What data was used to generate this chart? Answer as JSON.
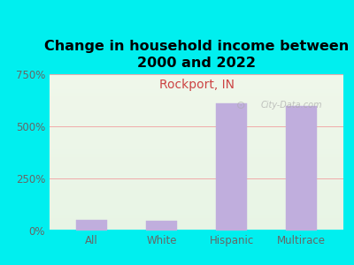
{
  "title": "Change in household income between\n2000 and 2022",
  "subtitle": "Rockport, IN",
  "categories": [
    "All",
    "White",
    "Hispanic",
    "Multirace"
  ],
  "values": [
    52,
    46,
    612,
    598
  ],
  "bar_color": "#c0aedd",
  "bar_edge_color": "#c0aedd",
  "background_color": "#00EFEF",
  "plot_bg_gradient_topleft": "#f0f5e8",
  "plot_bg_gradient_bottomright": "#e8f0f8",
  "title_fontsize": 11.5,
  "subtitle_fontsize": 10,
  "subtitle_color": "#cc4444",
  "tick_label_color": "#666666",
  "ylim": [
    0,
    750
  ],
  "yticks": [
    0,
    250,
    500,
    750
  ],
  "ytick_labels": [
    "0%",
    "250%",
    "500%",
    "750%"
  ],
  "grid_color": "#f0aaaa",
  "watermark": "City-Data.com"
}
